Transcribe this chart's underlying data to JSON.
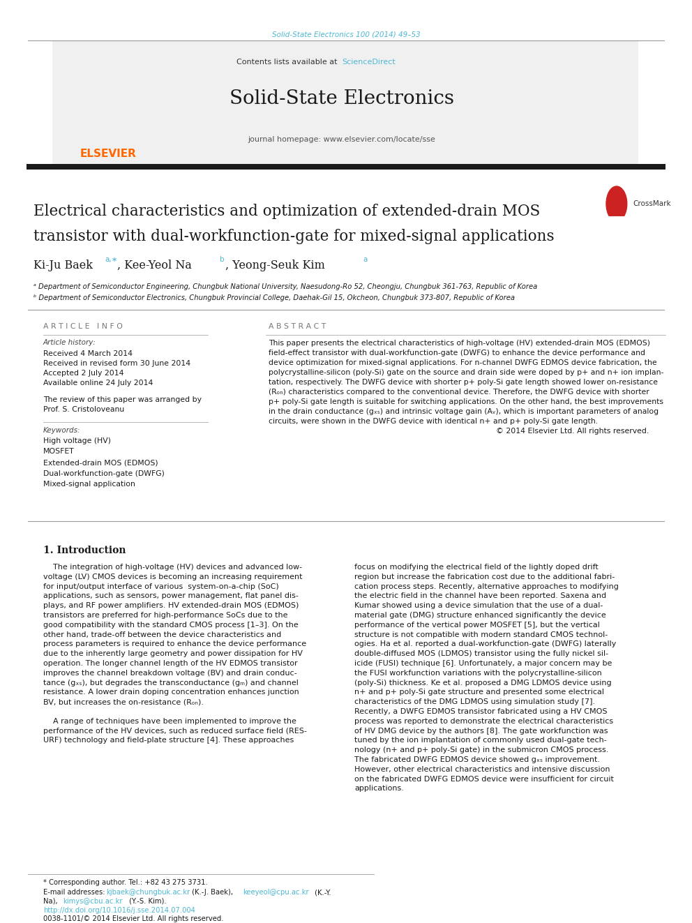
{
  "page_width": 9.92,
  "page_height": 13.23,
  "bg_color": "#ffffff",
  "top_citation": "Solid-State Electronics 100 (2014) 49–53",
  "top_citation_color": "#4db8d4",
  "header_bg": "#f0f0f0",
  "journal_title": "Solid-State Electronics",
  "contents_text": "Contents lists available at ",
  "sciencedirect_text": "ScienceDirect",
  "sciencedirect_color": "#4db8d4",
  "journal_homepage": "journal homepage: www.elsevier.com/locate/sse",
  "thick_bar_color": "#1a1a1a",
  "article_title_line1": "Electrical characteristics and optimization of extended-drain MOS",
  "article_title_line2": "transistor with dual-workfunction-gate for mixed-signal applications",
  "affil_a": "ᵃ Department of Semiconductor Engineering, Chungbuk National University, Naesudong-Ro 52, Cheongju, Chungbuk 361-763, Republic of Korea",
  "affil_b": "ᵇ Department of Semiconductor Electronics, Chungbuk Provincial College, Daehak-Gil 15, Okcheon, Chungbuk 373-807, Republic of Korea",
  "article_info_header": "A R T I C L E   I N F O",
  "abstract_header": "A B S T R A C T",
  "article_history_label": "Article history:",
  "received": "Received 4 March 2014",
  "revised": "Received in revised form 30 June 2014",
  "accepted": "Accepted 2 July 2014",
  "available": "Available online 24 July 2014",
  "review_line1": "The review of this paper was arranged by",
  "review_line2": "Prof. S. Cristoloveanu",
  "keywords_label": "Keywords:",
  "keywords": [
    "High voltage (HV)",
    "MOSFET",
    "Extended-drain MOS (EDMOS)",
    "Dual-workfunction-gate (DWFG)",
    "Mixed-signal application"
  ],
  "copyright": "© 2014 Elsevier Ltd. All rights reserved.",
  "intro_header": "1. Introduction",
  "footer_tel": "* Corresponding author. Tel.: +82 43 275 3731.",
  "footer_doi": "http://dx.doi.org/10.1016/j.sse.2014.07.004",
  "footer_issn": "0038-1101/© 2014 Elsevier Ltd. All rights reserved.",
  "elsevier_color": "#ff6600",
  "link_color": "#4db8d4",
  "abstract_lines": [
    "This paper presents the electrical characteristics of high-voltage (HV) extended-drain MOS (EDMOS)",
    "field-effect transistor with dual-workfunction-gate (DWFG) to enhance the device performance and",
    "device optimization for mixed-signal applications. For n-channel DWFG EDMOS device fabrication, the",
    "polycrystalline-silicon (poly-Si) gate on the source and drain side were doped by p+ and n+ ion implan-",
    "tation, respectively. The DWFG device with shorter p+ poly-Si gate length showed lower on-resistance",
    "(Rₒₙ) characteristics compared to the conventional device. Therefore, the DWFG device with shorter",
    "p+ poly-Si gate length is suitable for switching applications. On the other hand, the best improvements",
    "in the drain conductance (gₓₛ) and intrinsic voltage gain (Aᵥ), which is important parameters of analog",
    "circuits, were shown in the DWFG device with identical n+ and p+ poly-Si gate length."
  ],
  "intro_col1_lines": [
    "    The integration of high-voltage (HV) devices and advanced low-",
    "voltage (LV) CMOS devices is becoming an increasing requirement",
    "for input/output interface of various  system-on-a-chip (SoC)",
    "applications, such as sensors, power management, flat panel dis-",
    "plays, and RF power amplifiers. HV extended-drain MOS (EDMOS)",
    "transistors are preferred for high-performance SoCs due to the",
    "good compatibility with the standard CMOS process [1–3]. On the",
    "other hand, trade-off between the device characteristics and",
    "process parameters is required to enhance the device performance",
    "due to the inherently large geometry and power dissipation for HV",
    "operation. The longer channel length of the HV EDMOS transistor",
    "improves the channel breakdown voltage (BV) and drain conduc-",
    "tance (gₓₛ), but degrades the transconductance (gₘ) and channel",
    "resistance. A lower drain doping concentration enhances junction",
    "BV, but increases the on-resistance (Rₒₙ).",
    "",
    "    A range of techniques have been implemented to improve the",
    "performance of the HV devices, such as reduced surface field (RES-",
    "URF) technology and field-plate structure [4]. These approaches"
  ],
  "intro_col2_lines": [
    "focus on modifying the electrical field of the lightly doped drift",
    "region but increase the fabrication cost due to the additional fabri-",
    "cation process steps. Recently, alternative approaches to modifying",
    "the electric field in the channel have been reported. Saxena and",
    "Kumar showed using a device simulation that the use of a dual-",
    "material gate (DMG) structure enhanced significantly the device",
    "performance of the vertical power MOSFET [5], but the vertical",
    "structure is not compatible with modern standard CMOS technol-",
    "ogies. Ha et al. reported a dual-workfunction-gate (DWFG) laterally",
    "double-diffused MOS (LDMOS) transistor using the fully nickel sil-",
    "icide (FUSI) technique [6]. Unfortunately, a major concern may be",
    "the FUSI workfunction variations with the polycrystalline-silicon",
    "(poly-Si) thickness. Ke et al. proposed a DMG LDMOS device using",
    "n+ and p+ poly-Si gate structure and presented some electrical",
    "characteristics of the DMG LDMOS using simulation study [7].",
    "Recently, a DWFG EDMOS transistor fabricated using a HV CMOS",
    "process was reported to demonstrate the electrical characteristics",
    "of HV DMG device by the authors [8]. The gate workfunction was",
    "tuned by the ion implantation of commonly used dual-gate tech-",
    "nology (n+ and p+ poly-Si gate) in the submicron CMOS process.",
    "The fabricated DWFG EDMOS device showed gₓₛ improvement.",
    "However, other electrical characteristics and intensive discussion",
    "on the fabricated DWFG EDMOS device were insufficient for circuit",
    "applications."
  ]
}
